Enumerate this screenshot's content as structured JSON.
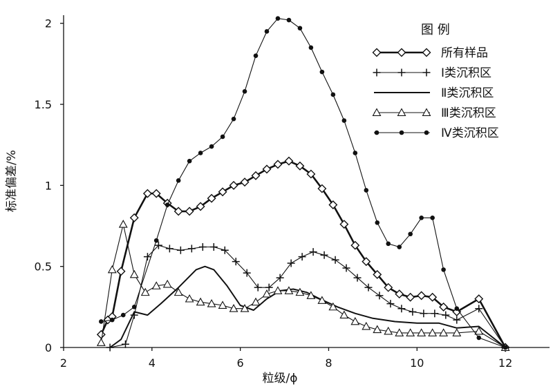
{
  "chart_data": {
    "type": "line",
    "xlabel": "粒级/ϕ",
    "ylabel": "标准偏差/%",
    "xlim": [
      2,
      13
    ],
    "ylim": [
      0,
      2.05
    ],
    "x_ticks": [
      "2",
      "4",
      "6",
      "8",
      "10",
      "12"
    ],
    "y_ticks": [
      "0",
      "0.5",
      "1",
      "1.5",
      "2"
    ],
    "grid": false,
    "legend": {
      "title": "图 例",
      "position": "top-right"
    },
    "series": [
      {
        "name": "所有样品",
        "marker": "diamond",
        "line_weight": "bold",
        "points": [
          [
            2.85,
            0.08
          ],
          [
            3.0,
            0.17
          ],
          [
            3.1,
            0.19
          ],
          [
            3.3,
            0.47
          ],
          [
            3.6,
            0.8
          ],
          [
            3.9,
            0.95
          ],
          [
            4.1,
            0.95
          ],
          [
            4.35,
            0.89
          ],
          [
            4.6,
            0.84
          ],
          [
            4.85,
            0.84
          ],
          [
            5.1,
            0.87
          ],
          [
            5.35,
            0.92
          ],
          [
            5.6,
            0.96
          ],
          [
            5.85,
            1.0
          ],
          [
            6.1,
            1.02
          ],
          [
            6.35,
            1.06
          ],
          [
            6.6,
            1.1
          ],
          [
            6.85,
            1.13
          ],
          [
            7.1,
            1.15
          ],
          [
            7.35,
            1.12
          ],
          [
            7.6,
            1.07
          ],
          [
            7.85,
            0.98
          ],
          [
            8.1,
            0.88
          ],
          [
            8.35,
            0.76
          ],
          [
            8.6,
            0.63
          ],
          [
            8.85,
            0.53
          ],
          [
            9.1,
            0.45
          ],
          [
            9.35,
            0.37
          ],
          [
            9.6,
            0.33
          ],
          [
            9.85,
            0.31
          ],
          [
            10.1,
            0.32
          ],
          [
            10.35,
            0.31
          ],
          [
            10.6,
            0.25
          ],
          [
            10.9,
            0.22
          ],
          [
            11.4,
            0.3
          ],
          [
            12.0,
            0.0
          ]
        ]
      },
      {
        "name": "Ⅰ类沉积区",
        "marker": "plus",
        "line_weight": "thin",
        "points": [
          [
            3.05,
            0.0
          ],
          [
            3.4,
            0.02
          ],
          [
            3.6,
            0.2
          ],
          [
            3.9,
            0.56
          ],
          [
            4.15,
            0.63
          ],
          [
            4.4,
            0.61
          ],
          [
            4.65,
            0.6
          ],
          [
            4.9,
            0.61
          ],
          [
            5.15,
            0.62
          ],
          [
            5.4,
            0.62
          ],
          [
            5.65,
            0.6
          ],
          [
            5.9,
            0.53
          ],
          [
            6.15,
            0.46
          ],
          [
            6.4,
            0.37
          ],
          [
            6.65,
            0.37
          ],
          [
            6.9,
            0.43
          ],
          [
            7.15,
            0.52
          ],
          [
            7.4,
            0.56
          ],
          [
            7.65,
            0.59
          ],
          [
            7.9,
            0.57
          ],
          [
            8.15,
            0.54
          ],
          [
            8.4,
            0.49
          ],
          [
            8.65,
            0.43
          ],
          [
            8.9,
            0.37
          ],
          [
            9.15,
            0.32
          ],
          [
            9.4,
            0.27
          ],
          [
            9.65,
            0.24
          ],
          [
            9.9,
            0.22
          ],
          [
            10.15,
            0.21
          ],
          [
            10.4,
            0.21
          ],
          [
            10.65,
            0.2
          ],
          [
            10.9,
            0.17
          ],
          [
            11.4,
            0.24
          ],
          [
            12.0,
            0.0
          ]
        ]
      },
      {
        "name": "Ⅱ类沉积区",
        "marker": "none",
        "line_weight": "medium",
        "points": [
          [
            3.05,
            0.0
          ],
          [
            3.3,
            0.05
          ],
          [
            3.6,
            0.22
          ],
          [
            3.9,
            0.2
          ],
          [
            4.2,
            0.27
          ],
          [
            4.6,
            0.37
          ],
          [
            5.0,
            0.48
          ],
          [
            5.2,
            0.5
          ],
          [
            5.4,
            0.48
          ],
          [
            5.7,
            0.38
          ],
          [
            6.0,
            0.26
          ],
          [
            6.3,
            0.23
          ],
          [
            6.6,
            0.3
          ],
          [
            6.9,
            0.35
          ],
          [
            7.2,
            0.36
          ],
          [
            7.5,
            0.34
          ],
          [
            7.8,
            0.3
          ],
          [
            8.2,
            0.25
          ],
          [
            8.6,
            0.21
          ],
          [
            9.0,
            0.18
          ],
          [
            9.5,
            0.16
          ],
          [
            10.0,
            0.15
          ],
          [
            10.5,
            0.15
          ],
          [
            10.9,
            0.12
          ],
          [
            11.4,
            0.13
          ],
          [
            12.0,
            0.0
          ]
        ]
      },
      {
        "name": "Ⅲ类沉积区",
        "marker": "triangle",
        "line_weight": "thin",
        "points": [
          [
            2.85,
            0.03
          ],
          [
            3.1,
            0.48
          ],
          [
            3.35,
            0.76
          ],
          [
            3.6,
            0.45
          ],
          [
            3.85,
            0.34
          ],
          [
            4.1,
            0.38
          ],
          [
            4.35,
            0.39
          ],
          [
            4.6,
            0.34
          ],
          [
            4.85,
            0.3
          ],
          [
            5.1,
            0.28
          ],
          [
            5.35,
            0.27
          ],
          [
            5.6,
            0.26
          ],
          [
            5.85,
            0.24
          ],
          [
            6.1,
            0.24
          ],
          [
            6.35,
            0.28
          ],
          [
            6.6,
            0.33
          ],
          [
            6.85,
            0.35
          ],
          [
            7.1,
            0.35
          ],
          [
            7.35,
            0.34
          ],
          [
            7.6,
            0.32
          ],
          [
            7.85,
            0.29
          ],
          [
            8.1,
            0.25
          ],
          [
            8.35,
            0.2
          ],
          [
            8.6,
            0.16
          ],
          [
            8.85,
            0.13
          ],
          [
            9.1,
            0.11
          ],
          [
            9.35,
            0.1
          ],
          [
            9.6,
            0.09
          ],
          [
            9.85,
            0.09
          ],
          [
            10.1,
            0.09
          ],
          [
            10.35,
            0.09
          ],
          [
            10.6,
            0.09
          ],
          [
            10.9,
            0.09
          ],
          [
            11.4,
            0.1
          ],
          [
            12.0,
            0.0
          ]
        ]
      },
      {
        "name": "Ⅳ类沉积区",
        "marker": "dot",
        "line_weight": "thin",
        "points": [
          [
            2.85,
            0.16
          ],
          [
            3.1,
            0.17
          ],
          [
            3.35,
            0.2
          ],
          [
            3.6,
            0.25
          ],
          [
            4.1,
            0.66
          ],
          [
            4.35,
            0.88
          ],
          [
            4.6,
            1.03
          ],
          [
            4.85,
            1.15
          ],
          [
            5.1,
            1.2
          ],
          [
            5.35,
            1.24
          ],
          [
            5.6,
            1.3
          ],
          [
            5.85,
            1.41
          ],
          [
            6.1,
            1.58
          ],
          [
            6.35,
            1.8
          ],
          [
            6.6,
            1.95
          ],
          [
            6.85,
            2.03
          ],
          [
            7.1,
            2.02
          ],
          [
            7.35,
            1.97
          ],
          [
            7.6,
            1.85
          ],
          [
            7.85,
            1.7
          ],
          [
            8.1,
            1.56
          ],
          [
            8.35,
            1.4
          ],
          [
            8.6,
            1.2
          ],
          [
            8.85,
            0.97
          ],
          [
            9.1,
            0.77
          ],
          [
            9.35,
            0.64
          ],
          [
            9.6,
            0.62
          ],
          [
            9.85,
            0.7
          ],
          [
            10.1,
            0.8
          ],
          [
            10.35,
            0.8
          ],
          [
            10.6,
            0.48
          ],
          [
            10.9,
            0.24
          ],
          [
            11.4,
            0.06
          ],
          [
            12.0,
            0.0
          ]
        ]
      }
    ]
  }
}
